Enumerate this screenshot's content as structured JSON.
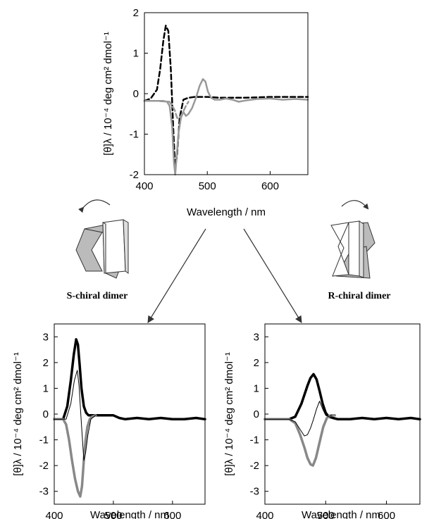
{
  "chart_data": [
    {
      "type": "line",
      "id": "top",
      "xlabel": "Wavelength / nm",
      "ylabel": "[θ]λ / 10⁻⁴ deg cm² dmol⁻¹",
      "xlim": [
        400,
        660
      ],
      "ylim": [
        -2,
        2
      ],
      "xticks": [
        400,
        500,
        600
      ],
      "yticks": [
        -2,
        -1,
        0,
        1,
        2
      ],
      "series": [
        {
          "style": "dashed",
          "color": "#000000",
          "x": [
            400,
            410,
            420,
            425,
            430,
            434,
            438,
            442,
            446,
            449,
            452,
            456,
            462,
            470,
            480,
            500,
            520,
            560,
            600,
            660
          ],
          "y": [
            -0.18,
            -0.12,
            0.1,
            0.6,
            1.3,
            1.68,
            1.55,
            0.6,
            -0.9,
            -1.85,
            -1.5,
            -0.6,
            -0.15,
            -0.1,
            -0.08,
            -0.08,
            -0.1,
            -0.1,
            -0.08,
            -0.08
          ]
        },
        {
          "style": "solid",
          "color": "#999999",
          "x": [
            400,
            420,
            430,
            436,
            440,
            444,
            447,
            449,
            451,
            454,
            458,
            462,
            466,
            470,
            476,
            482,
            488,
            493,
            497,
            501,
            506,
            512,
            520,
            530,
            540,
            550,
            560,
            570,
            580,
            600,
            620,
            640,
            660
          ],
          "y": [
            -0.18,
            -0.18,
            -0.18,
            -0.2,
            -0.3,
            -0.8,
            -1.7,
            -2.0,
            -1.6,
            -1.0,
            -0.6,
            -0.45,
            -0.55,
            -0.5,
            -0.35,
            -0.1,
            0.2,
            0.36,
            0.3,
            0.05,
            -0.1,
            -0.15,
            -0.15,
            -0.12,
            -0.15,
            -0.2,
            -0.17,
            -0.15,
            -0.13,
            -0.12,
            -0.15,
            -0.13,
            -0.15
          ]
        },
        {
          "style": "dashed",
          "color": "#999999",
          "x": [
            400,
            420,
            440,
            448,
            452,
            456,
            460,
            466,
            470
          ],
          "y": [
            -0.18,
            -0.18,
            -0.2,
            -0.4,
            -0.6,
            -0.6,
            -0.5,
            -0.3,
            -0.2
          ]
        }
      ]
    },
    {
      "type": "line",
      "id": "bottom-left",
      "xlabel": "Wavelength / nm",
      "ylabel": "[θ]λ / 10⁻⁴ deg cm² dmol⁻¹",
      "xlim": [
        400,
        655
      ],
      "ylim": [
        -3.5,
        3.5
      ],
      "xticks": [
        400,
        500,
        600
      ],
      "yticks": [
        -3,
        -2,
        -1,
        0,
        1,
        2,
        3
      ],
      "series": [
        {
          "style": "solid",
          "color": "#000000",
          "width": "thick",
          "x": [
            400,
            415,
            422,
            428,
            433,
            437,
            440,
            443,
            446,
            450,
            454,
            458,
            464,
            500,
            510,
            520,
            540,
            560,
            580,
            600,
            620,
            640,
            655
          ],
          "y": [
            -0.2,
            -0.2,
            0.3,
            1.3,
            2.3,
            2.9,
            2.7,
            1.9,
            1.0,
            0.3,
            0.05,
            -0.05,
            -0.05,
            -0.05,
            -0.15,
            -0.2,
            -0.15,
            -0.2,
            -0.15,
            -0.2,
            -0.2,
            -0.15,
            -0.2
          ]
        },
        {
          "style": "solid",
          "color": "#888888",
          "width": "thick",
          "x": [
            400,
            415,
            420,
            425,
            430,
            435,
            440,
            444,
            447,
            450,
            453,
            456,
            460,
            464,
            470
          ],
          "y": [
            -0.2,
            -0.2,
            -0.4,
            -1.0,
            -1.8,
            -2.5,
            -3.0,
            -3.2,
            -2.8,
            -1.8,
            -1.0,
            -0.5,
            -0.2,
            -0.1,
            -0.05
          ]
        },
        {
          "style": "solid",
          "color": "#000000",
          "width": "thin",
          "x": [
            400,
            420,
            428,
            434,
            439,
            442,
            446,
            450,
            453,
            457,
            462,
            470
          ],
          "y": [
            -0.2,
            -0.2,
            0.4,
            1.3,
            1.7,
            1.1,
            -0.4,
            -1.8,
            -1.5,
            -0.8,
            -0.2,
            -0.05
          ]
        }
      ]
    },
    {
      "type": "line",
      "id": "bottom-right",
      "xlabel": "Wavelength / nm",
      "ylabel": "[θ]λ / 10⁻⁴ deg cm² dmol⁻¹",
      "xlim": [
        400,
        655
      ],
      "ylim": [
        -3.5,
        3.5
      ],
      "xticks": [
        400,
        500,
        600
      ],
      "yticks": [
        -3,
        -2,
        -1,
        0,
        1,
        2,
        3
      ],
      "series": [
        {
          "style": "solid",
          "color": "#000000",
          "width": "thick",
          "x": [
            400,
            420,
            440,
            450,
            460,
            470,
            475,
            480,
            485,
            490,
            495,
            500,
            505,
            512,
            520,
            540,
            560,
            580,
            600,
            620,
            640,
            655
          ],
          "y": [
            -0.2,
            -0.2,
            -0.2,
            -0.1,
            0.4,
            1.1,
            1.4,
            1.55,
            1.35,
            0.9,
            0.4,
            0.05,
            -0.1,
            -0.15,
            -0.2,
            -0.2,
            -0.15,
            -0.2,
            -0.15,
            -0.2,
            -0.15,
            -0.2
          ]
        },
        {
          "style": "solid",
          "color": "#888888",
          "width": "thick",
          "x": [
            400,
            440,
            450,
            458,
            465,
            470,
            475,
            479,
            484,
            490,
            496,
            502,
            508,
            515
          ],
          "y": [
            -0.2,
            -0.2,
            -0.35,
            -0.8,
            -1.3,
            -1.7,
            -1.95,
            -2.0,
            -1.7,
            -1.1,
            -0.5,
            -0.15,
            -0.05,
            -0.05
          ]
        },
        {
          "style": "solid",
          "color": "#000000",
          "width": "thin",
          "x": [
            400,
            440,
            450,
            458,
            465,
            470,
            475,
            480,
            485,
            490,
            495,
            500,
            505,
            510
          ],
          "y": [
            -0.2,
            -0.2,
            -0.3,
            -0.6,
            -0.85,
            -0.8,
            -0.55,
            -0.2,
            0.2,
            0.5,
            0.2,
            -0.05,
            -0.1,
            -0.05
          ]
        }
      ]
    }
  ],
  "dimers": {
    "left_label": "S-chiral dimer",
    "right_label": "R-chiral dimer"
  },
  "colors": {
    "black": "#000000",
    "gray": "#999999",
    "dark_gray": "#888888",
    "panel_fill_gray": "#bbbbbb",
    "panel_fill_white": "#ffffff"
  }
}
